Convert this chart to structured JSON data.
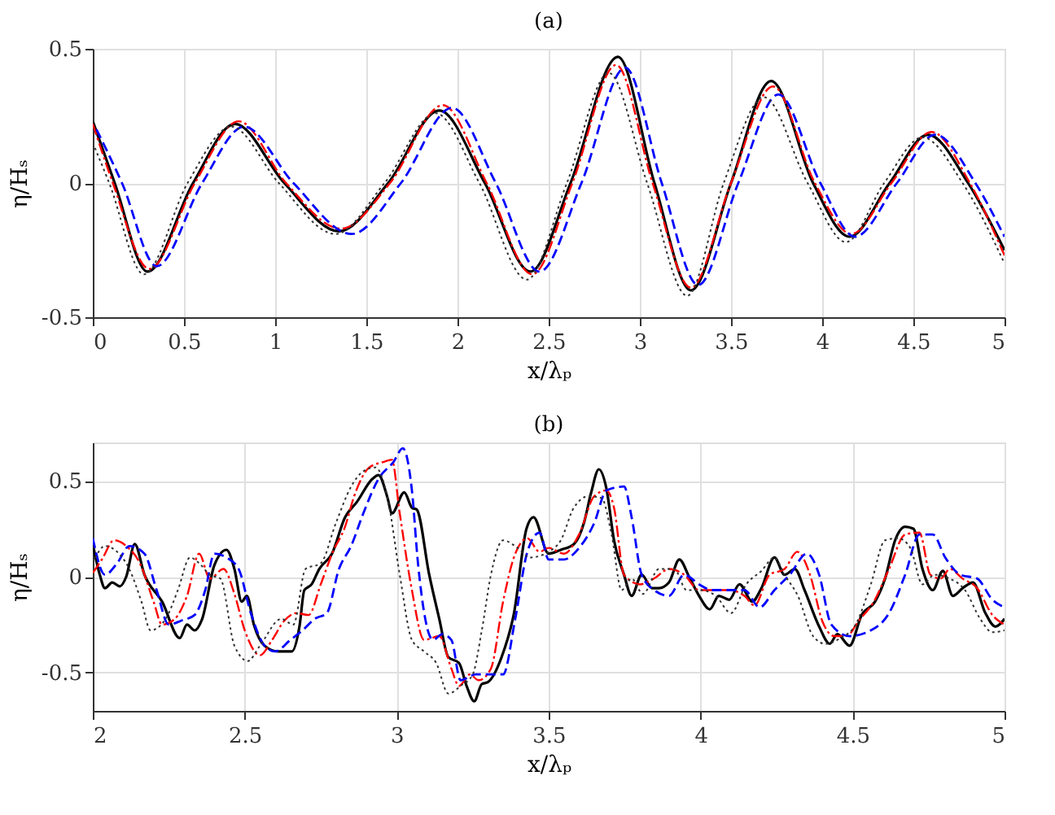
{
  "chart_data": [
    {
      "type": "line",
      "title": "(a)",
      "xlabel": "x/λₚ",
      "ylabel": "η/Hₛ",
      "xlim": [
        0,
        5
      ],
      "ylim": [
        -0.5,
        0.5
      ],
      "xticks": [
        0,
        0.5,
        1,
        1.5,
        2,
        2.5,
        3,
        3.5,
        4,
        4.5,
        5
      ],
      "yticks": [
        -0.5,
        0,
        0.5
      ],
      "grid": true,
      "series": [
        {
          "color": "#000000",
          "line_style": "solid",
          "x": [
            0,
            0.12,
            0.3,
            0.55,
            0.78,
            1.05,
            1.35,
            1.62,
            1.9,
            2.15,
            2.4,
            2.62,
            2.88,
            3.08,
            3.28,
            3.5,
            3.72,
            3.95,
            4.15,
            4.37,
            4.58,
            4.8,
            5
          ],
          "values": [
            0.23,
            0,
            -0.33,
            0,
            0.22,
            0,
            -0.18,
            0,
            0.27,
            0,
            -0.33,
            0,
            0.47,
            0,
            -0.4,
            0,
            0.38,
            0,
            -0.2,
            0,
            0.18,
            0,
            -0.25
          ]
        },
        {
          "color": "#ff0000",
          "line_style": "dashdot",
          "x": [
            0,
            0.11,
            0.31,
            0.56,
            0.8,
            1.06,
            1.36,
            1.63,
            1.92,
            2.16,
            2.41,
            2.63,
            2.87,
            3.07,
            3.28,
            3.5,
            3.73,
            3.96,
            4.16,
            4.38,
            4.6,
            4.81,
            5
          ],
          "values": [
            0.22,
            0,
            -0.32,
            0,
            0.23,
            0,
            -0.17,
            0,
            0.29,
            0,
            -0.34,
            0,
            0.44,
            0,
            -0.39,
            0,
            0.36,
            0,
            -0.19,
            0,
            0.19,
            0,
            -0.27
          ]
        },
        {
          "color": "#0000ff",
          "line_style": "dashed",
          "x": [
            0.02,
            0.16,
            0.35,
            0.6,
            0.83,
            1.1,
            1.42,
            1.69,
            1.97,
            2.21,
            2.45,
            2.68,
            2.92,
            3.12,
            3.32,
            3.54,
            3.76,
            3.99,
            4.18,
            4.41,
            4.62,
            4.84,
            5
          ],
          "values": [
            0.2,
            0,
            -0.31,
            0,
            0.21,
            0,
            -0.19,
            0,
            0.28,
            0,
            -0.33,
            0,
            0.43,
            0,
            -0.38,
            0,
            0.33,
            0,
            -0.2,
            0,
            0.18,
            0,
            -0.2
          ]
        },
        {
          "color": "#333333",
          "line_style": "dotted",
          "x": [
            0,
            0.09,
            0.28,
            0.52,
            0.76,
            1.02,
            1.33,
            1.6,
            1.88,
            2.12,
            2.38,
            2.6,
            2.83,
            3.04,
            3.26,
            3.46,
            3.68,
            3.92,
            4.13,
            4.34,
            4.55,
            4.77,
            5
          ],
          "values": [
            0.15,
            0,
            -0.34,
            0,
            0.21,
            0,
            -0.19,
            0,
            0.26,
            0,
            -0.36,
            0,
            0.41,
            0,
            -0.42,
            0,
            0.32,
            0,
            -0.22,
            0,
            0.17,
            0,
            -0.3
          ]
        }
      ]
    },
    {
      "type": "line",
      "title": "(b)",
      "xlabel": "x/λₚ",
      "ylabel": "η/Hₛ",
      "xlim": [
        2,
        5
      ],
      "ylim": [
        -0.7,
        0.7
      ],
      "xticks": [
        2,
        2.5,
        3,
        3.5,
        4,
        4.5,
        5
      ],
      "yticks": [
        -0.5,
        0,
        0.5
      ],
      "grid": true,
      "series": [
        {
          "color": "#000000",
          "line_style": "solid",
          "x": [
            2.0,
            2.023,
            2.04,
            2.064,
            2.089,
            2.11,
            2.138,
            2.17,
            2.228,
            2.286,
            2.31,
            2.335,
            2.36,
            2.4,
            2.44,
            2.466,
            2.49,
            2.507,
            2.53,
            2.565,
            2.61,
            2.655,
            2.68,
            2.696,
            2.72,
            2.745,
            2.787,
            2.83,
            2.869,
            2.92,
            2.94,
            2.97,
            2.984,
            3.025,
            3.05,
            3.066,
            3.107,
            3.14,
            3.17,
            3.205,
            3.23,
            3.255,
            3.28,
            3.3,
            3.345,
            3.386,
            3.427,
            3.45,
            3.5,
            3.54,
            3.583,
            3.616,
            3.64,
            3.665,
            3.69,
            3.715,
            3.748,
            3.773,
            3.806,
            3.84,
            3.863,
            3.896,
            3.93,
            3.962,
            3.995,
            4.03,
            4.06,
            4.094,
            4.128,
            4.17,
            4.2,
            4.243,
            4.276,
            4.31,
            4.342,
            4.39,
            4.425,
            4.45,
            4.49,
            4.53,
            4.574,
            4.607,
            4.64,
            4.673,
            4.7,
            4.73,
            4.764,
            4.797,
            4.83,
            4.862,
            4.896,
            4.937,
            4.97,
            5.0
          ],
          "values": [
            0.17,
            0.01,
            -0.06,
            -0.03,
            -0.05,
            0,
            0.17,
            0.01,
            -0.13,
            -0.32,
            -0.25,
            -0.28,
            -0.22,
            0.06,
            0.14,
            0.04,
            -0.13,
            -0.1,
            -0.25,
            -0.36,
            -0.39,
            -0.39,
            -0.26,
            -0.07,
            -0.04,
            0.04,
            0.12,
            0.31,
            0.39,
            0.51,
            0.53,
            0.41,
            0.33,
            0.44,
            0.36,
            0.35,
            0.01,
            -0.22,
            -0.42,
            -0.45,
            -0.57,
            -0.65,
            -0.56,
            -0.55,
            -0.42,
            -0.19,
            0.25,
            0.31,
            0.12,
            0.14,
            0.17,
            0.28,
            0.44,
            0.56,
            0.46,
            0.19,
            0.01,
            -0.1,
            0.01,
            -0.06,
            -0.06,
            -0.03,
            0.09,
            0,
            -0.1,
            -0.17,
            -0.1,
            -0.12,
            -0.04,
            -0.13,
            -0.06,
            0.1,
            0.01,
            0.04,
            -0.07,
            -0.26,
            -0.35,
            -0.3,
            -0.36,
            -0.2,
            -0.13,
            -0.01,
            0.19,
            0.26,
            0.25,
            0.04,
            -0.07,
            0.03,
            -0.1,
            -0.06,
            -0.03,
            -0.19,
            -0.26,
            -0.22
          ]
        },
        {
          "color": "#ff0000",
          "line_style": "dashdot",
          "x": [
            2.0,
            2.03,
            2.07,
            2.11,
            2.155,
            2.2,
            2.228,
            2.27,
            2.31,
            2.35,
            2.385,
            2.43,
            2.466,
            2.5,
            2.55,
            2.59,
            2.63,
            2.67,
            2.71,
            2.75,
            2.79,
            2.83,
            2.86,
            2.91,
            2.96,
            2.984,
            3.01,
            3.05,
            3.09,
            3.14,
            3.18,
            3.205,
            3.24,
            3.27,
            3.31,
            3.35,
            3.39,
            3.43,
            3.47,
            3.5,
            3.55,
            3.6,
            3.65,
            3.69,
            3.715,
            3.748,
            3.8,
            3.846,
            3.896,
            3.946,
            3.995,
            4.045,
            4.094,
            4.144,
            4.177,
            4.227,
            4.276,
            4.318,
            4.36,
            4.4,
            4.44,
            4.48,
            4.52,
            4.57,
            4.62,
            4.673,
            4.72,
            4.756,
            4.79,
            4.82,
            4.862,
            4.91,
            4.96,
            5.0
          ],
          "values": [
            0.02,
            0.09,
            0.19,
            0.16,
            0.07,
            -0.13,
            -0.25,
            -0.22,
            -0.1,
            0.12,
            -0.01,
            0.04,
            -0.09,
            -0.28,
            -0.41,
            -0.33,
            -0.23,
            -0.19,
            -0.2,
            -0.04,
            0.13,
            0.26,
            0.42,
            0.57,
            0.6,
            0.61,
            0.33,
            -0.07,
            -0.33,
            -0.31,
            -0.48,
            -0.57,
            -0.51,
            -0.54,
            -0.48,
            -0.13,
            0.12,
            0.2,
            0.13,
            0.15,
            0.12,
            0.22,
            0.42,
            0.45,
            0.36,
            0.01,
            -0.04,
            -0.01,
            0.04,
            0.01,
            -0.07,
            -0.07,
            -0.07,
            -0.1,
            -0.15,
            0.01,
            0.04,
            0.13,
            0.01,
            -0.23,
            -0.31,
            -0.31,
            -0.23,
            -0.13,
            0.04,
            0.22,
            0.23,
            0.01,
            -0.01,
            0.04,
            -0.01,
            -0.06,
            -0.2,
            -0.25
          ]
        },
        {
          "color": "#0000ff",
          "line_style": "dashed",
          "x": [
            2.0,
            2.04,
            2.08,
            2.12,
            2.17,
            2.21,
            2.25,
            2.29,
            2.335,
            2.37,
            2.4,
            2.44,
            2.48,
            2.52,
            2.565,
            2.6,
            2.65,
            2.69,
            2.73,
            2.77,
            2.81,
            2.85,
            2.89,
            2.94,
            2.99,
            3.02,
            3.05,
            3.07,
            3.12,
            3.15,
            3.18,
            3.21,
            3.26,
            3.31,
            3.35,
            3.39,
            3.43,
            3.47,
            3.5,
            3.55,
            3.6,
            3.65,
            3.69,
            3.748,
            3.773,
            3.806,
            3.847,
            3.896,
            3.946,
            3.995,
            4.037,
            4.094,
            4.144,
            4.194,
            4.243,
            4.293,
            4.35,
            4.39,
            4.43,
            4.49,
            4.56,
            4.62,
            4.673,
            4.72,
            4.764,
            4.805,
            4.855,
            4.91,
            4.96,
            5.0
          ],
          "values": [
            0.2,
            0.01,
            0.07,
            0.16,
            0.12,
            -0.07,
            -0.25,
            -0.23,
            -0.2,
            -0.07,
            0.12,
            0.1,
            0.04,
            -0.19,
            -0.36,
            -0.39,
            -0.33,
            -0.28,
            -0.22,
            -0.19,
            0.04,
            0.16,
            0.33,
            0.51,
            0.6,
            0.67,
            0.45,
            0.07,
            -0.33,
            -0.3,
            -0.33,
            -0.54,
            -0.51,
            -0.51,
            -0.51,
            -0.22,
            0.13,
            0.23,
            0.09,
            0.09,
            0.15,
            0.28,
            0.45,
            0.47,
            0.31,
            0.01,
            -0.07,
            -0.1,
            0.01,
            -0.04,
            -0.07,
            -0.07,
            -0.07,
            -0.16,
            -0.07,
            0.01,
            0.12,
            0.01,
            -0.25,
            -0.31,
            -0.28,
            -0.19,
            0.01,
            0.22,
            0.22,
            0.1,
            0.01,
            -0.01,
            -0.12,
            -0.16
          ]
        },
        {
          "color": "#333333",
          "line_style": "dotted",
          "x": [
            2.0,
            2.04,
            2.08,
            2.12,
            2.16,
            2.19,
            2.24,
            2.28,
            2.32,
            2.35,
            2.385,
            2.42,
            2.466,
            2.51,
            2.55,
            2.62,
            2.66,
            2.7,
            2.75,
            2.8,
            2.85,
            2.89,
            2.93,
            2.97,
            3.01,
            3.05,
            3.09,
            3.13,
            3.17,
            3.21,
            3.25,
            3.28,
            3.31,
            3.35,
            3.39,
            3.44,
            3.5,
            3.54,
            3.583,
            3.632,
            3.674,
            3.707,
            3.74,
            3.773,
            3.81,
            3.863,
            3.913,
            3.954,
            4.0,
            4.05,
            4.1,
            4.15,
            4.2,
            4.243,
            4.276,
            4.32,
            4.37,
            4.41,
            4.46,
            4.51,
            4.56,
            4.607,
            4.65,
            4.69,
            4.73,
            4.77,
            4.82,
            4.87,
            4.92,
            4.96,
            5.0
          ],
          "values": [
            0.07,
            0.16,
            0.13,
            0.04,
            -0.13,
            -0.28,
            -0.22,
            -0.07,
            0.1,
            0.07,
            0.01,
            -0.01,
            -0.36,
            -0.44,
            -0.36,
            -0.22,
            -0.25,
            0.04,
            0.07,
            0.28,
            0.47,
            0.55,
            0.57,
            0.41,
            0.01,
            -0.33,
            -0.39,
            -0.45,
            -0.61,
            -0.57,
            -0.51,
            -0.28,
            0.01,
            0.19,
            0.16,
            0.1,
            0.13,
            0.19,
            0.36,
            0.42,
            0.41,
            0.22,
            -0.07,
            -0.01,
            -0.09,
            0.04,
            0.04,
            -0.07,
            -0.07,
            -0.1,
            -0.19,
            -0.04,
            0.03,
            0.1,
            0.01,
            -0.1,
            -0.31,
            -0.35,
            -0.32,
            -0.25,
            -0.04,
            0.19,
            0.2,
            0.15,
            -0.04,
            0.01,
            -0.01,
            -0.07,
            -0.22,
            -0.29,
            -0.28
          ]
        }
      ]
    }
  ]
}
